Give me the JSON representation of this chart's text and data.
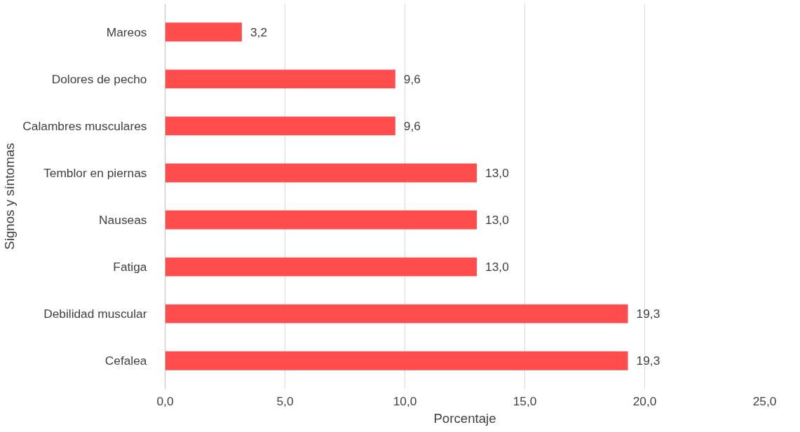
{
  "chart_data": {
    "type": "bar",
    "orientation": "horizontal",
    "xlabel": "Porcentaje",
    "ylabel": "Signos y síntomas",
    "categories": [
      "Mareos",
      "Dolores de pecho",
      "Calambres musculares",
      "Temblor en piernas",
      "Nauseas",
      "Fatiga",
      "Debilidad muscular",
      "Cefalea"
    ],
    "values": [
      3.2,
      9.6,
      9.6,
      13.0,
      13.0,
      13.0,
      19.3,
      19.3
    ],
    "value_labels": [
      "3,2",
      "9,6",
      "9,6",
      "13,0",
      "13,0",
      "13,0",
      "19,3",
      "19,3"
    ],
    "color": "#ff4d4d",
    "xlim": [
      0,
      25
    ],
    "xticks": [
      {
        "value": 0,
        "label": "0,0"
      },
      {
        "value": 5,
        "label": "5,0"
      },
      {
        "value": 10,
        "label": "10,0"
      },
      {
        "value": 15,
        "label": "15,0"
      },
      {
        "value": 20,
        "label": "20,0"
      },
      {
        "value": 25,
        "label": "25,0"
      }
    ],
    "grid": "x"
  }
}
